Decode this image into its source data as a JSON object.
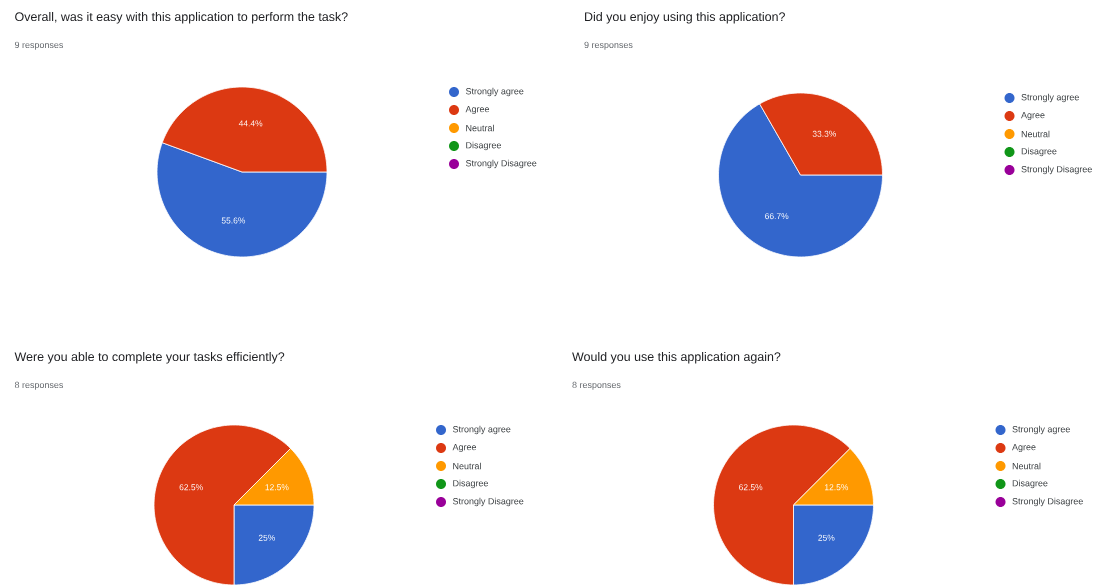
{
  "chart_data": [
    {
      "type": "pie",
      "title": "Overall, was it easy with this application to perform the task?",
      "subtitle": "9 responses",
      "categories": [
        "Strongly agree",
        "Agree",
        "Neutral",
        "Disagree",
        "Strongly Disagree"
      ],
      "values": [
        55.6,
        44.4,
        0,
        0,
        0
      ],
      "value_labels": [
        "55.6%",
        "44.4%",
        null,
        null,
        null
      ],
      "colors": [
        "#3366cc",
        "#dc3912",
        "#ff9900",
        "#109618",
        "#990099"
      ],
      "legend": "right"
    },
    {
      "type": "pie",
      "title": "Did you enjoy using this application?",
      "subtitle": "9 responses",
      "categories": [
        "Strongly agree",
        "Agree",
        "Neutral",
        "Disagree",
        "Strongly Disagree"
      ],
      "values": [
        66.7,
        33.3,
        0,
        0,
        0
      ],
      "value_labels": [
        "66.7%",
        "33.3%",
        null,
        null,
        null
      ],
      "colors": [
        "#3366cc",
        "#dc3912",
        "#ff9900",
        "#109618",
        "#990099"
      ],
      "legend": "right"
    },
    {
      "type": "pie",
      "title": "Were you able to complete your tasks efficiently?",
      "subtitle": "8 responses",
      "categories": [
        "Strongly agree",
        "Agree",
        "Neutral",
        "Disagree",
        "Strongly Disagree"
      ],
      "values": [
        25,
        62.5,
        12.5,
        0,
        0
      ],
      "value_labels": [
        "25%",
        "62.5%",
        "12.5%",
        null,
        null
      ],
      "colors": [
        "#3366cc",
        "#dc3912",
        "#ff9900",
        "#109618",
        "#990099"
      ],
      "legend": "right"
    },
    {
      "type": "pie",
      "title": "Would you use this application again?",
      "subtitle": "8 responses",
      "categories": [
        "Strongly agree",
        "Agree",
        "Neutral",
        "Disagree",
        "Strongly Disagree"
      ],
      "values": [
        25,
        62.5,
        12.5,
        0,
        0
      ],
      "value_labels": [
        "25%",
        "62.5%",
        "12.5%",
        null,
        null
      ],
      "colors": [
        "#3366cc",
        "#dc3912",
        "#ff9900",
        "#109618",
        "#990099"
      ],
      "legend": "right"
    }
  ]
}
